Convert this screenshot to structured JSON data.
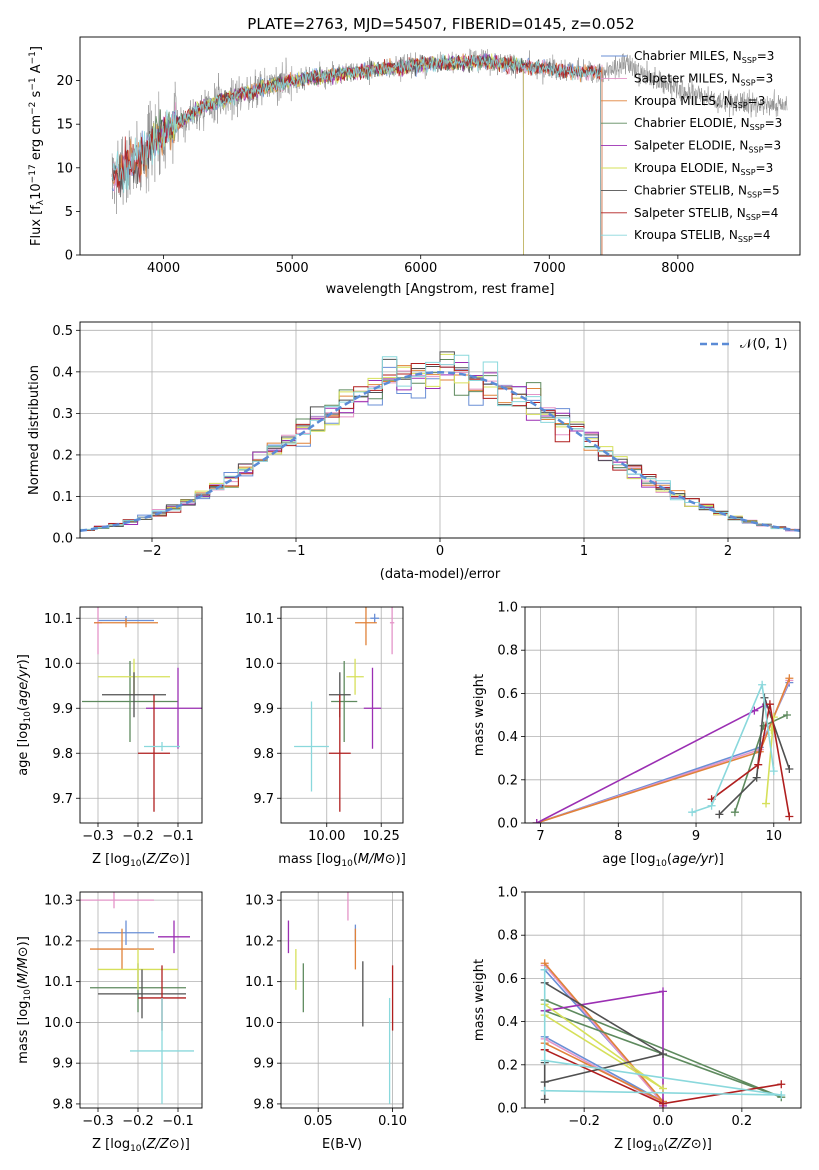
{
  "page": {
    "title": "PLATE=2763, MJD=54507, FIBERID=0145, z=0.052"
  },
  "model_colors": [
    "#6a8fd6",
    "#e495c8",
    "#e0823a",
    "#5e8a5e",
    "#9b2fb3",
    "#d6e05a",
    "#505050",
    "#b01f1f",
    "#8ad8dc"
  ],
  "chart_data": [
    {
      "id": "spectrum",
      "type": "line",
      "title": "PLATE=2763, MJD=54507, FIBERID=0145, z=0.052",
      "xlabel": "wavelength [Angstrom, rest frame]",
      "ylabel": "Flux [f_λ10^-17 erg cm^-2 s^-1 A^-1]",
      "xlim": [
        3350,
        8950
      ],
      "ylim": [
        0,
        25
      ],
      "xticks": [
        "4000",
        "5000",
        "6000",
        "7000",
        "8000"
      ],
      "yticks": [
        "0",
        "5",
        "10",
        "15",
        "20"
      ],
      "legend_position": "top-right",
      "grid": false,
      "legend": [
        {
          "name": "Chabrier MILES",
          "nssp": "3"
        },
        {
          "name": "Salpeter MILES",
          "nssp": "3"
        },
        {
          "name": "Kroupa MILES",
          "nssp": "3"
        },
        {
          "name": "Chabrier ELODIE",
          "nssp": "3"
        },
        {
          "name": "Salpeter ELODIE",
          "nssp": "3"
        },
        {
          "name": "Kroupa ELODIE",
          "nssp": "3"
        },
        {
          "name": "Chabrier STELIB",
          "nssp": "5"
        },
        {
          "name": "Salpeter STELIB",
          "nssp": "4"
        },
        {
          "name": "Kroupa STELIB",
          "nssp": "4"
        }
      ],
      "spectrum_envelope": {
        "x": [
          3600,
          3800,
          4000,
          4300,
          4600,
          5000,
          5500,
          6000,
          6500,
          7000,
          7400,
          7600,
          7800,
          8100,
          8400,
          8850
        ],
        "y": [
          9,
          11,
          14,
          17,
          18.5,
          20,
          21,
          21.8,
          22.2,
          21.3,
          20.8,
          21.8,
          20.3,
          18.5,
          17.5,
          17
        ]
      },
      "model_extent": {
        "Chabrier MILES": [
          3600,
          7410
        ],
        "Salpeter MILES": [
          3600,
          7410
        ],
        "Kroupa MILES": [
          3600,
          7410
        ],
        "Chabrier ELODIE": [
          3900,
          6800
        ],
        "Salpeter ELODIE": [
          3900,
          6800
        ],
        "Kroupa ELODIE": [
          3900,
          6800
        ],
        "Chabrier STELIB": [
          3600,
          7400
        ],
        "Salpeter STELIB": [
          3600,
          7400
        ],
        "Kroupa STELIB": [
          3600,
          7400
        ]
      }
    },
    {
      "id": "residuals",
      "type": "line",
      "xlabel": "(data-model)/error",
      "ylabel": "Normed distribution",
      "xlim": [
        -2.5,
        2.5
      ],
      "ylim": [
        0,
        0.52
      ],
      "xticks": [
        "−2",
        "−1",
        "0",
        "1",
        "2"
      ],
      "yticks": [
        "0.0",
        "0.1",
        "0.2",
        "0.3",
        "0.4",
        "0.5"
      ],
      "grid": true,
      "legend_position": "top-right",
      "legend": [
        "𝒩(0, 1)"
      ],
      "bin_width": 0.1,
      "reference_curve": "normal(0,1)"
    },
    {
      "id": "age-vs-Z",
      "type": "scatter",
      "xlabel": "Z [log10(Z/Z⊙)]",
      "ylabel": "age [log10(age/yr)]",
      "xlim": [
        -0.345,
        -0.04
      ],
      "ylim": [
        9.645,
        10.125
      ],
      "xticks": [
        "−0.3",
        "−0.2",
        "−0.1"
      ],
      "yticks": [
        "9.7",
        "9.8",
        "9.9",
        "10.0",
        "10.1"
      ],
      "grid": true,
      "points": [
        {
          "x": -0.23,
          "y": 10.095,
          "xerr": 0.07,
          "yerr": 0.01,
          "model": 0
        },
        {
          "x": -0.3,
          "y": 10.09,
          "xerr": 0.01,
          "yerr": 0.07,
          "model": 1
        },
        {
          "x": -0.23,
          "y": 10.09,
          "xerr": 0.08,
          "yerr": 0.01,
          "model": 2
        },
        {
          "x": -0.22,
          "y": 9.915,
          "xerr": 0.12,
          "yerr": 0.09,
          "model": 3
        },
        {
          "x": -0.1,
          "y": 9.9,
          "xerr": 0.08,
          "yerr": 0.09,
          "model": 4
        },
        {
          "x": -0.21,
          "y": 9.97,
          "xerr": 0.09,
          "yerr": 0.04,
          "model": 5
        },
        {
          "x": -0.21,
          "y": 9.93,
          "xerr": 0.08,
          "yerr": 0.05,
          "model": 6
        },
        {
          "x": -0.16,
          "y": 9.8,
          "xerr": 0.04,
          "yerr": 0.13,
          "model": 7
        },
        {
          "x": -0.14,
          "y": 9.815,
          "xerr": 0.045,
          "yerr": 0.01,
          "model": 8
        }
      ]
    },
    {
      "id": "age-vs-mass",
      "type": "scatter",
      "xlabel": "mass [log10(M/M⊙)]",
      "ylabel": "",
      "xlim": [
        9.79,
        10.35
      ],
      "ylim": [
        9.645,
        10.125
      ],
      "xticks": [
        "10.00",
        "10.25"
      ],
      "yticks": [
        "9.7",
        "9.8",
        "9.9",
        "10.0",
        "10.1"
      ],
      "grid": true,
      "points": [
        {
          "x": 10.22,
          "y": 10.1,
          "xerr": 0.02,
          "yerr": 0.01,
          "model": 0
        },
        {
          "x": 10.3,
          "y": 10.09,
          "xerr": 0.01,
          "yerr": 0.07,
          "model": 1
        },
        {
          "x": 10.18,
          "y": 10.09,
          "xerr": 0.05,
          "yerr": 0.05,
          "model": 2
        },
        {
          "x": 10.08,
          "y": 9.915,
          "xerr": 0.06,
          "yerr": 0.09,
          "model": 3
        },
        {
          "x": 10.21,
          "y": 9.9,
          "xerr": 0.04,
          "yerr": 0.09,
          "model": 4
        },
        {
          "x": 10.13,
          "y": 9.97,
          "xerr": 0.04,
          "yerr": 0.04,
          "model": 5
        },
        {
          "x": 10.06,
          "y": 9.93,
          "xerr": 0.05,
          "yerr": 0.05,
          "model": 6
        },
        {
          "x": 10.06,
          "y": 9.8,
          "xerr": 0.05,
          "yerr": 0.13,
          "model": 7
        },
        {
          "x": 9.93,
          "y": 9.815,
          "xerr": 0.08,
          "yerr": 0.1,
          "model": 8
        }
      ]
    },
    {
      "id": "weight-vs-age",
      "type": "line",
      "xlabel": "age [log10(age/yr)]",
      "ylabel": "mass weight",
      "xlim": [
        6.8,
        10.35
      ],
      "ylim": [
        0,
        1
      ],
      "xticks": [
        "7",
        "8",
        "9",
        "10"
      ],
      "yticks": [
        "0.0",
        "0.2",
        "0.4",
        "0.6",
        "0.8",
        "1.0"
      ],
      "grid": true,
      "series": [
        {
          "model": 0,
          "points": [
            [
              6.95,
              0.0
            ],
            [
              9.82,
              0.35
            ],
            [
              10.2,
              0.65
            ]
          ]
        },
        {
          "model": 1,
          "points": [
            [
              6.95,
              0.0
            ],
            [
              9.82,
              0.34
            ],
            [
              10.2,
              0.66
            ]
          ]
        },
        {
          "model": 2,
          "points": [
            [
              6.95,
              0.0
            ],
            [
              9.82,
              0.33
            ],
            [
              10.2,
              0.67
            ]
          ]
        },
        {
          "model": 3,
          "points": [
            [
              9.5,
              0.05
            ],
            [
              9.87,
              0.45
            ],
            [
              10.17,
              0.5
            ]
          ]
        },
        {
          "model": 4,
          "points": [
            [
              6.95,
              0.0
            ],
            [
              9.75,
              0.52
            ],
            [
              9.9,
              0.55
            ]
          ]
        },
        {
          "model": 5,
          "points": [
            [
              9.9,
              0.09
            ],
            [
              10.0,
              0.49
            ],
            [
              9.97,
              0.43
            ]
          ]
        },
        {
          "model": 6,
          "points": [
            [
              9.3,
              0.04
            ],
            [
              9.78,
              0.21
            ],
            [
              9.88,
              0.58
            ],
            [
              10.2,
              0.25
            ]
          ]
        },
        {
          "model": 7,
          "points": [
            [
              9.2,
              0.11
            ],
            [
              9.8,
              0.27
            ],
            [
              9.95,
              0.55
            ],
            [
              10.2,
              0.03
            ]
          ]
        },
        {
          "model": 8,
          "points": [
            [
              8.95,
              0.05
            ],
            [
              9.2,
              0.08
            ],
            [
              9.85,
              0.64
            ],
            [
              10.0,
              0.24
            ]
          ]
        }
      ]
    },
    {
      "id": "mass-vs-Z",
      "type": "scatter",
      "xlabel": "Z [log10(Z/Z⊙)]",
      "ylabel": "mass [log10(M/M⊙)]",
      "xlim": [
        -0.345,
        -0.04
      ],
      "ylim": [
        9.79,
        10.32
      ],
      "xticks": [
        "−0.3",
        "−0.2",
        "−0.1"
      ],
      "yticks": [
        "9.8",
        "9.9",
        "10.0",
        "10.1",
        "10.2",
        "10.3"
      ],
      "grid": true,
      "points": [
        {
          "x": -0.23,
          "y": 10.22,
          "xerr": 0.07,
          "yerr": 0.03,
          "model": 0
        },
        {
          "x": -0.26,
          "y": 10.3,
          "xerr": 0.1,
          "yerr": 0.02,
          "model": 1
        },
        {
          "x": -0.24,
          "y": 10.18,
          "xerr": 0.08,
          "yerr": 0.05,
          "model": 2
        },
        {
          "x": -0.2,
          "y": 10.085,
          "xerr": 0.12,
          "yerr": 0.06,
          "model": 3
        },
        {
          "x": -0.11,
          "y": 10.21,
          "xerr": 0.04,
          "yerr": 0.04,
          "model": 4
        },
        {
          "x": -0.2,
          "y": 10.13,
          "xerr": 0.1,
          "yerr": 0.05,
          "model": 5
        },
        {
          "x": -0.19,
          "y": 10.07,
          "xerr": 0.11,
          "yerr": 0.06,
          "model": 6
        },
        {
          "x": -0.14,
          "y": 10.06,
          "xerr": 0.06,
          "yerr": 0.08,
          "model": 7
        },
        {
          "x": -0.14,
          "y": 9.93,
          "xerr": 0.08,
          "yerr": 0.13,
          "model": 8
        }
      ]
    },
    {
      "id": "mass-vs-ebv",
      "type": "scatter",
      "xlabel": "E(B-V)",
      "ylabel": "",
      "xlim": [
        0.025,
        0.107
      ],
      "ylim": [
        9.79,
        10.32
      ],
      "xticks": [
        "0.05",
        "0.10"
      ],
      "yticks": [
        "9.8",
        "9.9",
        "10.0",
        "10.1",
        "10.2",
        "10.3"
      ],
      "grid": true,
      "points": [
        {
          "x": 0.075,
          "y": 10.22,
          "xerr": 0.0,
          "yerr": 0.02,
          "model": 0
        },
        {
          "x": 0.07,
          "y": 10.3,
          "xerr": 0.0,
          "yerr": 0.05,
          "model": 1
        },
        {
          "x": 0.075,
          "y": 10.18,
          "xerr": 0.0,
          "yerr": 0.05,
          "model": 2
        },
        {
          "x": 0.04,
          "y": 10.085,
          "xerr": 0.0,
          "yerr": 0.06,
          "model": 3
        },
        {
          "x": 0.03,
          "y": 10.21,
          "xerr": 0.0,
          "yerr": 0.04,
          "model": 4
        },
        {
          "x": 0.035,
          "y": 10.13,
          "xerr": 0.0,
          "yerr": 0.05,
          "model": 5
        },
        {
          "x": 0.08,
          "y": 10.07,
          "xerr": 0.0,
          "yerr": 0.08,
          "model": 6
        },
        {
          "x": 0.1,
          "y": 10.06,
          "xerr": 0.0,
          "yerr": 0.08,
          "model": 7
        },
        {
          "x": 0.098,
          "y": 9.93,
          "xerr": 0.0,
          "yerr": 0.13,
          "model": 8
        }
      ]
    },
    {
      "id": "weight-vs-Z",
      "type": "line",
      "xlabel": "Z [log10(Z/Z⊙)]",
      "ylabel": "mass weight",
      "xlim": [
        -0.35,
        0.35
      ],
      "ylim": [
        0,
        1
      ],
      "xticks": [
        "−0.2",
        "0.0",
        "0.2"
      ],
      "yticks": [
        "0.0",
        "0.2",
        "0.4",
        "0.6",
        "0.8",
        "1.0"
      ],
      "grid": true,
      "series": [
        {
          "model": 0,
          "points": [
            [
              -0.3,
              0.64
            ],
            [
              0.0,
              0.03
            ],
            [
              -0.3,
              0.33
            ]
          ]
        },
        {
          "model": 1,
          "points": [
            [
              -0.3,
              0.66
            ],
            [
              0.0,
              0.02
            ],
            [
              -0.3,
              0.32
            ]
          ]
        },
        {
          "model": 2,
          "points": [
            [
              -0.3,
              0.67
            ],
            [
              0.0,
              0.03
            ],
            [
              -0.3,
              0.3
            ]
          ]
        },
        {
          "model": 3,
          "points": [
            [
              -0.3,
              0.5
            ],
            [
              0.3,
              0.05
            ],
            [
              -0.3,
              0.45
            ]
          ]
        },
        {
          "model": 4,
          "points": [
            [
              -0.3,
              0.45
            ],
            [
              0.0,
              0.54
            ],
            [
              0.0,
              0.01
            ]
          ]
        },
        {
          "model": 5,
          "points": [
            [
              -0.3,
              0.48
            ],
            [
              0.0,
              0.09
            ],
            [
              -0.3,
              0.43
            ]
          ]
        },
        {
          "model": 6,
          "points": [
            [
              -0.3,
              0.04
            ],
            [
              -0.3,
              0.21
            ],
            [
              -0.3,
              0.12
            ],
            [
              0.0,
              0.25
            ],
            [
              -0.3,
              0.58
            ]
          ]
        },
        {
          "model": 7,
          "points": [
            [
              -0.3,
              0.27
            ],
            [
              0.0,
              0.02
            ],
            [
              0.3,
              0.11
            ]
          ]
        },
        {
          "model": 8,
          "points": [
            [
              -0.3,
              0.64
            ],
            [
              -0.3,
              0.22
            ],
            [
              0.3,
              0.06
            ],
            [
              -0.3,
              0.08
            ]
          ]
        }
      ]
    }
  ]
}
